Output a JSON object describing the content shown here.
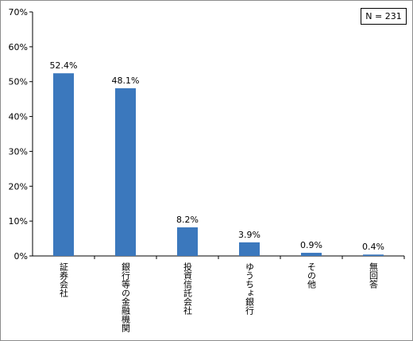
{
  "note": "N = 231",
  "chart_data": {
    "type": "bar",
    "categories": [
      "証券会社",
      "銀行等の金融機関",
      "投資信託会社",
      "ゆうちょ銀行",
      "その他",
      "無回答"
    ],
    "values": [
      52.4,
      48.1,
      8.2,
      3.9,
      0.9,
      0.4
    ],
    "data_labels": [
      "52.4%",
      "48.1%",
      "8.2%",
      "3.9%",
      "0.9%",
      "0.4%"
    ],
    "yticks": [
      "0%",
      "10%",
      "20%",
      "30%",
      "40%",
      "50%",
      "60%",
      "70%"
    ],
    "ylim": [
      0,
      70
    ],
    "title": "",
    "xlabel": "",
    "ylabel": "",
    "bar_color": "#3b78bd",
    "grid": false,
    "x_label_orientation": "vertical"
  }
}
